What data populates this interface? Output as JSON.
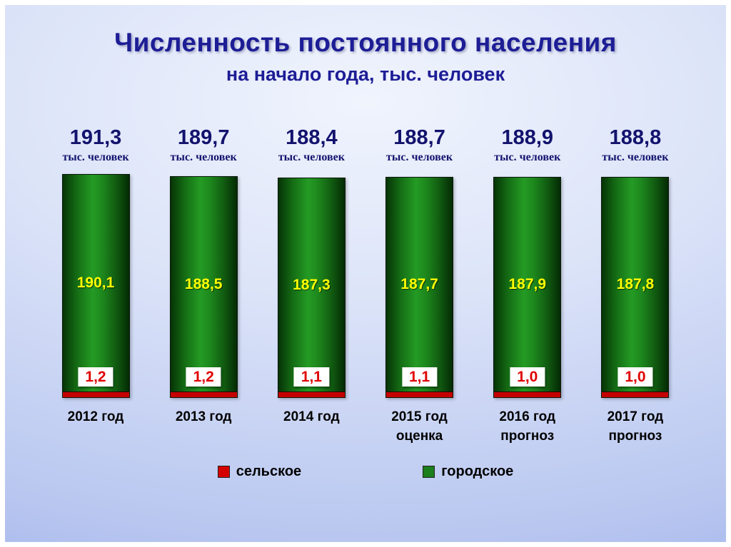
{
  "slide": {
    "title": "Численность постоянного населения",
    "subtitle": "на начало года, тыс. человек"
  },
  "legend": [
    {
      "label": "сельское",
      "color": "#d40000"
    },
    {
      "label": "городское",
      "color": "#1c7e1c"
    }
  ],
  "chart_data": {
    "type": "bar",
    "stacked": true,
    "title": "Численность постоянного населения",
    "subtitle": "на начало года, тыс. человек",
    "ylabel": "тыс. человек",
    "ylim": [
      0,
      195
    ],
    "grid": false,
    "legend_position": "bottom",
    "categories": [
      "2012 год",
      "2013 год",
      "2014 год",
      "2015 год оценка",
      "2016 год прогноз",
      "2017 год прогноз"
    ],
    "totals": [
      191.3,
      189.7,
      188.4,
      188.7,
      188.9,
      188.8
    ],
    "series": [
      {
        "name": "сельское",
        "color": "#d40000",
        "values": [
          1.2,
          1.2,
          1.1,
          1.1,
          1.0,
          1.0
        ]
      },
      {
        "name": "городское",
        "color": "#1c7e1c",
        "values": [
          190.1,
          188.5,
          187.3,
          187.7,
          187.9,
          187.8
        ]
      }
    ],
    "columns": [
      {
        "total": "191,3",
        "unit": "тыс. человек",
        "urban": "190,1",
        "rural": "1,2",
        "year": "2012 год",
        "note": ""
      },
      {
        "total": "189,7",
        "unit": "тыс. человек",
        "urban": "188,5",
        "rural": "1,2",
        "year": "2013 год",
        "note": ""
      },
      {
        "total": "188,4",
        "unit": "тыс. человек",
        "urban": "187,3",
        "rural": "1,1",
        "year": "2014 год",
        "note": ""
      },
      {
        "total": "188,7",
        "unit": "тыс. человек",
        "urban": "187,7",
        "rural": "1,1",
        "year": "2015 год",
        "note": "оценка"
      },
      {
        "total": "188,9",
        "unit": "тыс. человек",
        "urban": "187,9",
        "rural": "1,0",
        "year": "2016 год",
        "note": "прогноз"
      },
      {
        "total": "188,8",
        "unit": "тыс. человек",
        "urban": "187,8",
        "rural": "1,0",
        "year": "2017 год",
        "note": "прогноз"
      }
    ]
  }
}
